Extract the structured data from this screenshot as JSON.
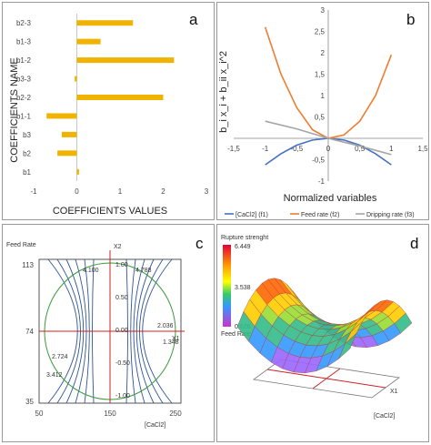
{
  "panels": [
    {
      "label": "a",
      "chart_data": {
        "type": "bar",
        "orientation": "horizontal",
        "categories": [
          "b1",
          "b2",
          "b3",
          "b1-1",
          "b2-2",
          "b3-3",
          "b1-2",
          "b1-3",
          "b2-3"
        ],
        "values": [
          0.05,
          -0.45,
          -0.35,
          -0.7,
          2.0,
          -0.05,
          2.25,
          0.55,
          1.3
        ],
        "xlim": [
          -1,
          3
        ],
        "xticks": [
          "-1",
          "0",
          "1",
          "2",
          "3"
        ],
        "xlabel": "COEFFICIENTS VALUES",
        "ylabel": "COEFFICIENTS NAME",
        "color": "#f0b400"
      }
    },
    {
      "label": "b",
      "chart_data": {
        "type": "line",
        "xlim": [
          -1.5,
          1.5
        ],
        "ylim": [
          -1,
          3
        ],
        "xticks": [
          "-1,5",
          "-1",
          "-0,5",
          "0",
          "0,5",
          "1",
          "1,5"
        ],
        "yticks": [
          "-1",
          "-0,5",
          "0",
          "0,5",
          "1",
          "1,5",
          "2",
          "2,5",
          "3"
        ],
        "xlabel": "Normalized variables",
        "ylabel": "b_i x_i + b_ii x_i^2",
        "series": [
          {
            "name": "[CaCl2] (f1)",
            "color": "#4472c4",
            "x": [
              -1,
              -0.75,
              -0.5,
              -0.25,
              0,
              0.25,
              0.5,
              0.75,
              1
            ],
            "y": [
              -0.62,
              -0.36,
              -0.16,
              -0.04,
              0,
              -0.04,
              -0.16,
              -0.36,
              -0.62
            ]
          },
          {
            "name": "Feed rate (f2)",
            "color": "#ed7d31",
            "x": [
              -1,
              -0.75,
              -0.5,
              -0.25,
              0,
              0.25,
              0.5,
              0.75,
              1
            ],
            "y": [
              2.6,
              1.5,
              0.72,
              0.2,
              0,
              0.08,
              0.4,
              1.0,
              1.95
            ]
          },
          {
            "name": "Dripping rate (f3)",
            "color": "#a5a5a5",
            "x": [
              -1,
              -0.5,
              0,
              0.5,
              1
            ],
            "y": [
              0.4,
              0.22,
              0,
              -0.18,
              -0.38
            ]
          }
        ]
      }
    },
    {
      "label": "c",
      "chart_data": {
        "type": "contour",
        "xlabel": "[CaCl2]",
        "ylabel": "Feed Rate",
        "xticks": [
          "50",
          "150",
          "250"
        ],
        "yticks": [
          "113",
          "74",
          "35"
        ],
        "axis2_labels": [
          "X2",
          "X1"
        ],
        "coded_ticks": [
          "1.00",
          "0.50",
          "0.00",
          "-0.50",
          "-1.00"
        ],
        "contour_labels": [
          "1.348",
          "2.036",
          "2.724",
          "3.412",
          "4.100",
          "4.788"
        ]
      }
    },
    {
      "label": "d",
      "chart_data": {
        "type": "surface",
        "zlabel": "Rupture strenght",
        "colorbar_ticks": [
          "6.449",
          "3.538",
          "0.626"
        ],
        "axis_labels": [
          "Feed Rate",
          "X1",
          "[CaCl2]"
        ]
      }
    }
  ]
}
